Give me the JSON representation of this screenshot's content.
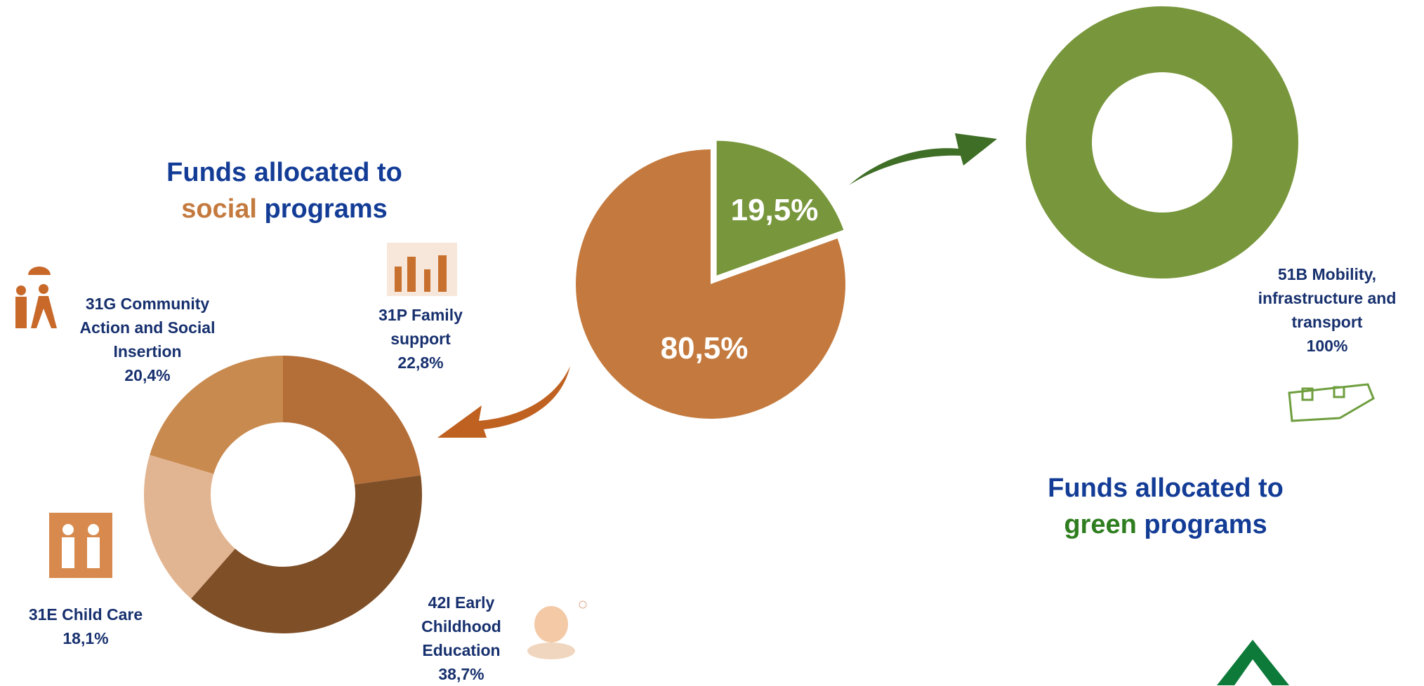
{
  "chart_data": [
    {
      "type": "pie",
      "categories": [
        null,
        null
      ],
      "values": [
        19.5,
        80.5
      ],
      "value_labels": [
        "19,5%",
        "80,5%"
      ],
      "colors": [
        "#78963C",
        "#C47A3E"
      ]
    },
    {
      "type": "donut",
      "title": [
        "Funds allocated to",
        "social",
        "programs"
      ],
      "title_colors": [
        "#133C96",
        "#C47A3E",
        "#133C96"
      ],
      "categories": [
        "31P Family support",
        "42I Early Childhood Education",
        "31E Child Care",
        "31G Community Action and Social Insertion"
      ],
      "values": [
        22.8,
        38.7,
        18.1,
        20.4
      ],
      "value_labels": [
        "22,8%",
        "38,7%",
        "18,1%",
        "20,4%"
      ],
      "colors": [
        "#B46E38",
        "#7F4F27",
        "#E2B592",
        "#C98A4F"
      ]
    },
    {
      "type": "donut",
      "title": [
        "Funds allocated to",
        "green",
        "programs"
      ],
      "title_colors": [
        "#133C96",
        "#2E7D1E",
        "#133C96"
      ],
      "categories": [
        "51B Mobility, infrastructure and transport"
      ],
      "values": [
        100
      ],
      "value_labels": [
        "100%"
      ],
      "colors": [
        "#78963C"
      ]
    }
  ]
}
